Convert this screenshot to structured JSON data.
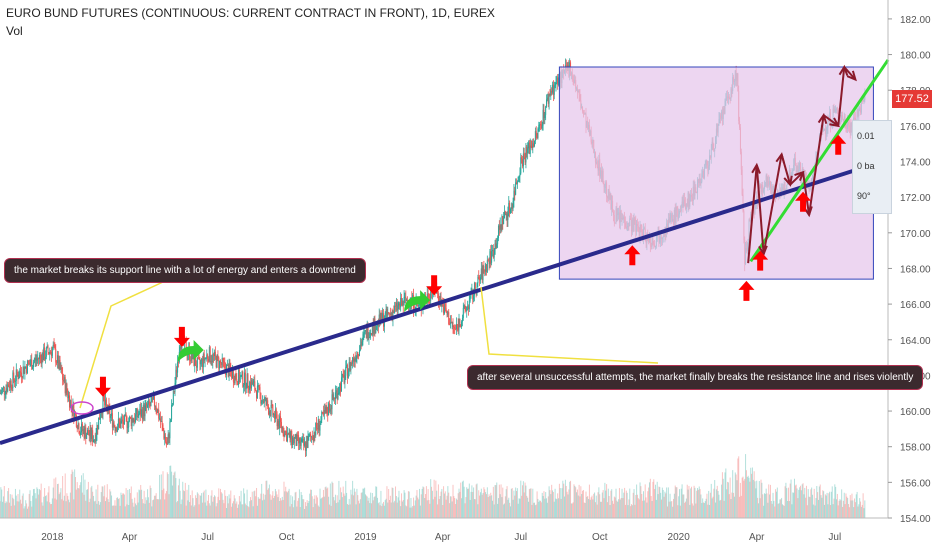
{
  "header": {
    "title": "EURO BUND FUTURES (CONTINUOUS: CURRENT CONTRACT IN FRONT), 1D, EUREX",
    "indicator": "Vol"
  },
  "current_price": "177.52",
  "measure_tool": {
    "row1": "0.01",
    "row2": "0 ba",
    "row3": "90°"
  },
  "annotations": {
    "support_break": "the market breaks its support line with a lot of energy and enters a downtrend",
    "resistance_break": "after several unsuccessful attempts, the market finally breaks the resistance line and rises violently"
  },
  "colors": {
    "trendline": "#2a2a8c",
    "green_line": "#33dd33",
    "box_fill": "#e7c8ec",
    "box_border": "#3344bb",
    "up_candle": "#26a69a",
    "down_candle": "#ef5350",
    "arrow_red": "#ff0000",
    "arrow_green": "#33cc33",
    "zigzag": "#8b1a2b"
  },
  "chart_data": {
    "type": "line",
    "title": "EURO BUND FUTURES (CONTINUOUS: CURRENT CONTRACT IN FRONT), 1D, EUREX",
    "x_ticks": [
      "2018",
      "Apr",
      "Jul",
      "Oct",
      "2019",
      "Apr",
      "Jul",
      "Oct",
      "2020",
      "Apr",
      "Jul"
    ],
    "y_ticks": [
      154,
      156,
      158,
      160,
      162,
      164,
      166,
      168,
      170,
      172,
      174,
      176,
      178,
      180,
      182
    ],
    "ylim": [
      154,
      182.5
    ],
    "grid": false,
    "series": [
      {
        "name": "",
        "x": [
          "2017-11-01",
          "2017-12-01",
          "2018-01-02",
          "2018-01-22",
          "2018-02-02",
          "2018-02-19",
          "2018-03-01",
          "2018-03-15",
          "2018-04-03",
          "2018-05-01",
          "2018-05-15",
          "2018-05-30",
          "2018-06-20",
          "2018-07-02",
          "2018-08-01",
          "2018-08-22",
          "2018-09-20",
          "2018-10-04",
          "2018-10-22",
          "2018-11-15",
          "2018-12-03",
          "2019-01-03",
          "2019-01-31",
          "2019-02-20",
          "2019-03-05",
          "2019-03-22",
          "2019-04-05",
          "2019-04-15",
          "2019-05-01",
          "2019-05-15",
          "2019-05-30",
          "2019-06-10",
          "2019-06-20",
          "2019-07-01",
          "2019-07-20",
          "2019-08-05",
          "2019-08-28",
          "2019-09-10",
          "2019-09-25",
          "2019-10-08",
          "2019-10-18",
          "2019-11-08",
          "2019-12-02",
          "2019-12-20",
          "2020-01-15",
          "2020-02-05",
          "2020-02-20",
          "2020-03-09",
          "2020-03-18",
          "2020-03-25",
          "2020-04-10",
          "2020-04-29",
          "2020-05-15",
          "2020-06-03",
          "2020-06-15",
          "2020-07-01",
          "2020-07-20",
          "2020-08-05"
        ],
        "values": [
          161.0,
          162.5,
          163.5,
          160.5,
          159.0,
          158.5,
          160.5,
          159.2,
          159.5,
          160.5,
          158.0,
          164.0,
          162.5,
          163.2,
          162.0,
          161.5,
          159.5,
          158.5,
          158.0,
          159.8,
          161.5,
          164.5,
          165.5,
          166.3,
          165.8,
          167.0,
          165.5,
          164.5,
          166.0,
          167.5,
          169.0,
          170.8,
          171.5,
          174.0,
          175.5,
          178.0,
          179.3,
          177.0,
          174.5,
          172.5,
          171.0,
          170.5,
          169.5,
          170.5,
          172.0,
          174.0,
          176.5,
          179.0,
          168.5,
          171.0,
          173.0,
          172.0,
          174.0,
          172.5,
          175.5,
          176.8,
          176.0,
          177.5
        ]
      },
      {
        "name": "Vol",
        "values": [
          0.5,
          0.4,
          0.6,
          0.7,
          0.8,
          0.5,
          0.6,
          0.4,
          0.5,
          0.5,
          0.9,
          0.6,
          0.4,
          0.5,
          0.4,
          0.5,
          0.6,
          0.5,
          0.4,
          0.5,
          0.6,
          0.5,
          0.5,
          0.4,
          0.5,
          0.6,
          0.5,
          0.5,
          0.6,
          0.5,
          0.5,
          0.6,
          0.5,
          0.6,
          0.5,
          0.5,
          0.6,
          0.5,
          0.5,
          0.6,
          0.5,
          0.5,
          0.6,
          0.5,
          0.5,
          0.5,
          0.7,
          0.9,
          1.0,
          0.8,
          0.5,
          0.5,
          0.6,
          0.5,
          0.5,
          0.5,
          0.4,
          0.4
        ]
      }
    ],
    "trendline": {
      "from": {
        "x": "2017-11-01",
        "y": 158.2
      },
      "to": {
        "x": "2020-09-01",
        "y": 174.1
      }
    },
    "green_line": {
      "from": {
        "x": "2020-03-25",
        "y": 168.4
      },
      "to": {
        "x": "2020-09-01",
        "y": 179.7
      }
    },
    "box": {
      "x0": "2019-08-15",
      "x1": "2020-08-15",
      "y0": 167.4,
      "y1": 179.3
    },
    "zigzag": [
      {
        "x": "2020-03-22",
        "y": 168.3
      },
      {
        "x": "2020-04-01",
        "y": 173.8
      },
      {
        "x": "2020-04-09",
        "y": 168.8
      },
      {
        "x": "2020-04-30",
        "y": 174.4
      },
      {
        "x": "2020-05-10",
        "y": 172.7
      },
      {
        "x": "2020-05-25",
        "y": 173.4
      },
      {
        "x": "2020-06-01",
        "y": 171.0
      },
      {
        "x": "2020-06-18",
        "y": 176.6
      },
      {
        "x": "2020-07-05",
        "y": 176.0
      },
      {
        "x": "2020-07-12",
        "y": 179.3
      },
      {
        "x": "2020-07-25",
        "y": 178.6
      }
    ],
    "red_arrows_down": [
      {
        "x": "2018-03-01",
        "y": 160.8
      },
      {
        "x": "2018-06-01",
        "y": 163.6
      },
      {
        "x": "2019-03-22",
        "y": 166.5
      }
    ],
    "red_arrows_up": [
      {
        "x": "2019-11-08",
        "y": 169.3
      },
      {
        "x": "2020-03-20",
        "y": 167.3
      },
      {
        "x": "2020-04-05",
        "y": 169.0
      },
      {
        "x": "2020-05-25",
        "y": 172.3
      },
      {
        "x": "2020-07-05",
        "y": 175.5
      }
    ],
    "green_curved_arrows": [
      {
        "x": "2018-06-10",
        "y": 163.2
      },
      {
        "x": "2019-03-01",
        "y": 166.0
      }
    ]
  }
}
